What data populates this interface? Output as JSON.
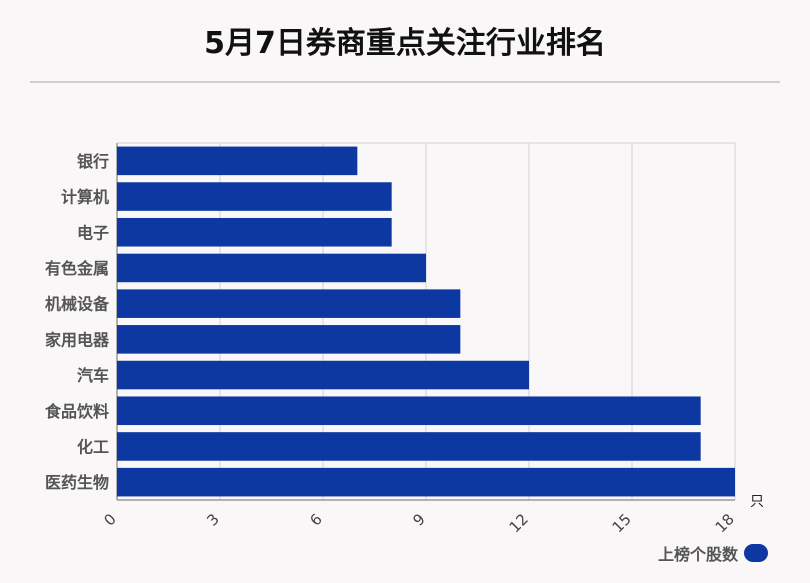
{
  "chart_data": {
    "type": "bar",
    "orientation": "horizontal",
    "title": "5月7日券商重点关注行业排名",
    "categories": [
      "银行",
      "计算机",
      "电子",
      "有色金属",
      "机械设备",
      "家用电器",
      "汽车",
      "食品饮料",
      "化工",
      "医药生物"
    ],
    "series": [
      {
        "name": "上榜个股数",
        "values": [
          7,
          8,
          8,
          9,
          10,
          10,
          12,
          17,
          17,
          18
        ]
      }
    ],
    "x_ticks": [
      "0",
      "3",
      "6",
      "9",
      "12",
      "15",
      "18"
    ],
    "xlim": [
      0,
      18
    ],
    "x_unit": "只",
    "grid": true,
    "legend_position": "bottom-right",
    "colors": {
      "bar": "#0d37a1",
      "grid": "#d3d3d3",
      "axis": "#999999"
    }
  }
}
